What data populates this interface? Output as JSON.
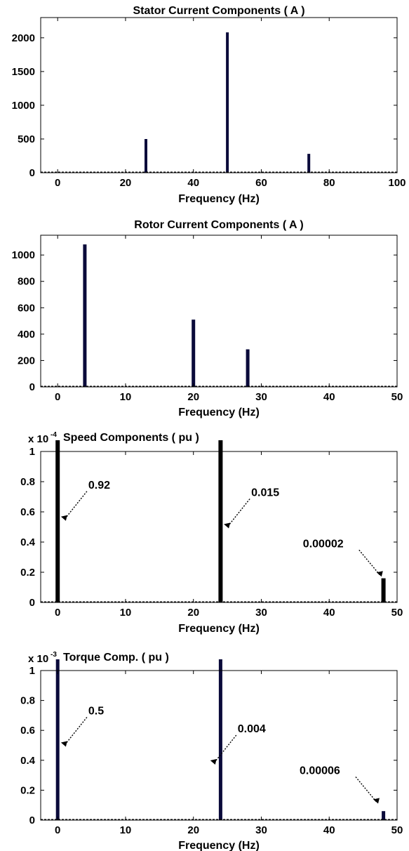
{
  "chart_data": [
    {
      "type": "bar",
      "title": "Stator Current Components ( A )",
      "xlabel": "Frequency (Hz)",
      "ylabel": "",
      "xlim": [
        -5,
        100
      ],
      "ylim": [
        0,
        2300
      ],
      "xticks": [
        0,
        20,
        40,
        60,
        80,
        100
      ],
      "yticks": [
        0,
        500,
        1000,
        1500,
        2000
      ],
      "x": [
        26,
        50,
        74
      ],
      "values": [
        500,
        2080,
        280
      ],
      "bar_color": "#0a0a3a",
      "grid": false
    },
    {
      "type": "bar",
      "title": "Rotor Current Components ( A )",
      "xlabel": "Frequency (Hz)",
      "ylabel": "",
      "xlim": [
        -2.5,
        50
      ],
      "ylim": [
        0,
        1150
      ],
      "xticks": [
        0,
        10,
        20,
        30,
        40,
        50
      ],
      "yticks": [
        0,
        200,
        400,
        600,
        800,
        1000
      ],
      "x": [
        4,
        20,
        28
      ],
      "values": [
        1080,
        510,
        285
      ],
      "bar_color": "#0a0a3a",
      "grid": false
    },
    {
      "type": "bar",
      "title": "Speed Components ( pu )",
      "xlabel": "Frequency (Hz)",
      "ylabel": "",
      "exponent_label": "x 10",
      "exponent": "-4",
      "xlim": [
        -2.5,
        50
      ],
      "ylim": [
        0,
        1
      ],
      "xticks": [
        0,
        10,
        20,
        30,
        40,
        50
      ],
      "yticks": [
        "0",
        "0.2",
        "0.4",
        "0.6",
        "0.8",
        "1"
      ],
      "x": [
        0,
        24,
        48
      ],
      "values": [
        1.1,
        1.1,
        0.16
      ],
      "bar_color": "#000000",
      "grid": false,
      "annotations": [
        {
          "text": "0.92",
          "x": 1,
          "y": 0.55
        },
        {
          "text": "0.015",
          "x": 25,
          "y": 0.5
        },
        {
          "text": "0.00002",
          "x": 47.5,
          "y": 0.18
        }
      ]
    },
    {
      "type": "bar",
      "title": "Torque Comp. ( pu )",
      "xlabel": "Frequency (Hz)",
      "ylabel": "",
      "exponent_label": "x 10",
      "exponent": "-3",
      "xlim": [
        -2.5,
        50
      ],
      "ylim": [
        0,
        1
      ],
      "xticks": [
        0,
        10,
        20,
        30,
        40,
        50
      ],
      "yticks": [
        "0",
        "0.2",
        "0.4",
        "0.6",
        "0.8",
        "1"
      ],
      "x": [
        0,
        24,
        48
      ],
      "values": [
        1.1,
        1.1,
        0.06
      ],
      "bar_color": "#0a0a3a",
      "grid": false,
      "annotations": [
        {
          "text": "0.5",
          "x": 1,
          "y": 0.5
        },
        {
          "text": "0.004",
          "x": 23,
          "y": 0.38
        },
        {
          "text": "0.00006",
          "x": 47,
          "y": 0.12
        }
      ]
    }
  ]
}
